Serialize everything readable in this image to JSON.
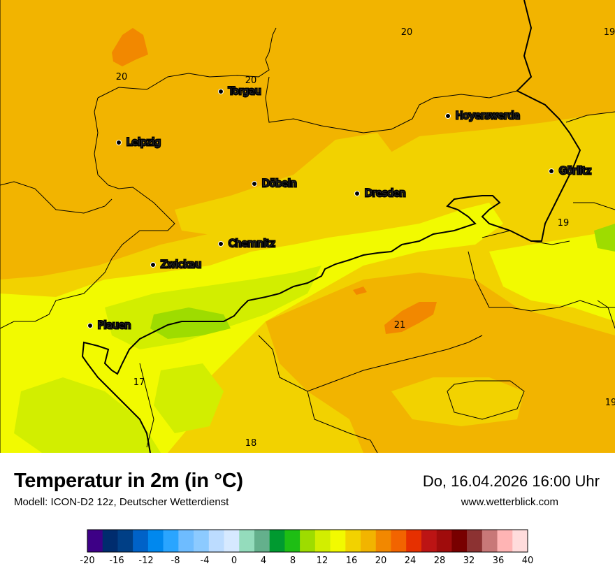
{
  "map": {
    "cities": [
      {
        "name": "Torgau",
        "pos": [
          316,
          131
        ]
      },
      {
        "name": "Leipzig",
        "pos": [
          170,
          204
        ]
      },
      {
        "name": "Hoyerswerda",
        "pos": [
          641,
          166
        ]
      },
      {
        "name": "Döbeln",
        "pos": [
          364,
          263
        ]
      },
      {
        "name": "Dresden",
        "pos": [
          511,
          277
        ]
      },
      {
        "name": "Görlitz",
        "pos": [
          789,
          245
        ]
      },
      {
        "name": "Chemnitz",
        "pos": [
          316,
          349
        ]
      },
      {
        "name": "Zwickau",
        "pos": [
          219,
          379
        ]
      },
      {
        "name": "Plauen",
        "pos": [
          129,
          466
        ]
      }
    ],
    "temp_labels": [
      {
        "text": "20",
        "pos": [
          582,
          50
        ]
      },
      {
        "text": "19",
        "pos": [
          872,
          50
        ]
      },
      {
        "text": "20",
        "pos": [
          174,
          114
        ]
      },
      {
        "text": "20",
        "pos": [
          359,
          119
        ]
      },
      {
        "text": "19",
        "pos": [
          806,
          323
        ]
      },
      {
        "text": "21",
        "pos": [
          572,
          469
        ]
      },
      {
        "text": "17",
        "pos": [
          199,
          551
        ]
      },
      {
        "text": "19",
        "pos": [
          874,
          580
        ]
      },
      {
        "text": "18",
        "pos": [
          359,
          638
        ]
      }
    ]
  },
  "header": {
    "title": "Temperatur in 2m (in °C)",
    "subtitle": "Modell: ICON-D2 12z, Deutscher Wetterdienst",
    "datetime": "Do, 16.04.2026 16:00 Uhr",
    "website": "www.wetterblick.com"
  },
  "legend": {
    "colors": [
      "#3d0086",
      "#002c6e",
      "#003f86",
      "#0062c8",
      "#0088ee",
      "#2aa5ff",
      "#6ebcff",
      "#8ccaff",
      "#bcdcff",
      "#d6e9ff",
      "#94dcbc",
      "#64b08c",
      "#009a30",
      "#1ebe14",
      "#9edc00",
      "#d2ee00",
      "#f2fa00",
      "#f2d200",
      "#f2b400",
      "#f28800",
      "#f26400",
      "#e63000",
      "#bc1414",
      "#a00c0c",
      "#780000",
      "#8c3232",
      "#c87878",
      "#ffb4b4",
      "#ffdcdc"
    ],
    "ticks": [
      "-20",
      "-16",
      "-12",
      "-8",
      "-4",
      "0",
      "4",
      "8",
      "12",
      "16",
      "20",
      "24",
      "28",
      "32",
      "36",
      "40"
    ]
  }
}
